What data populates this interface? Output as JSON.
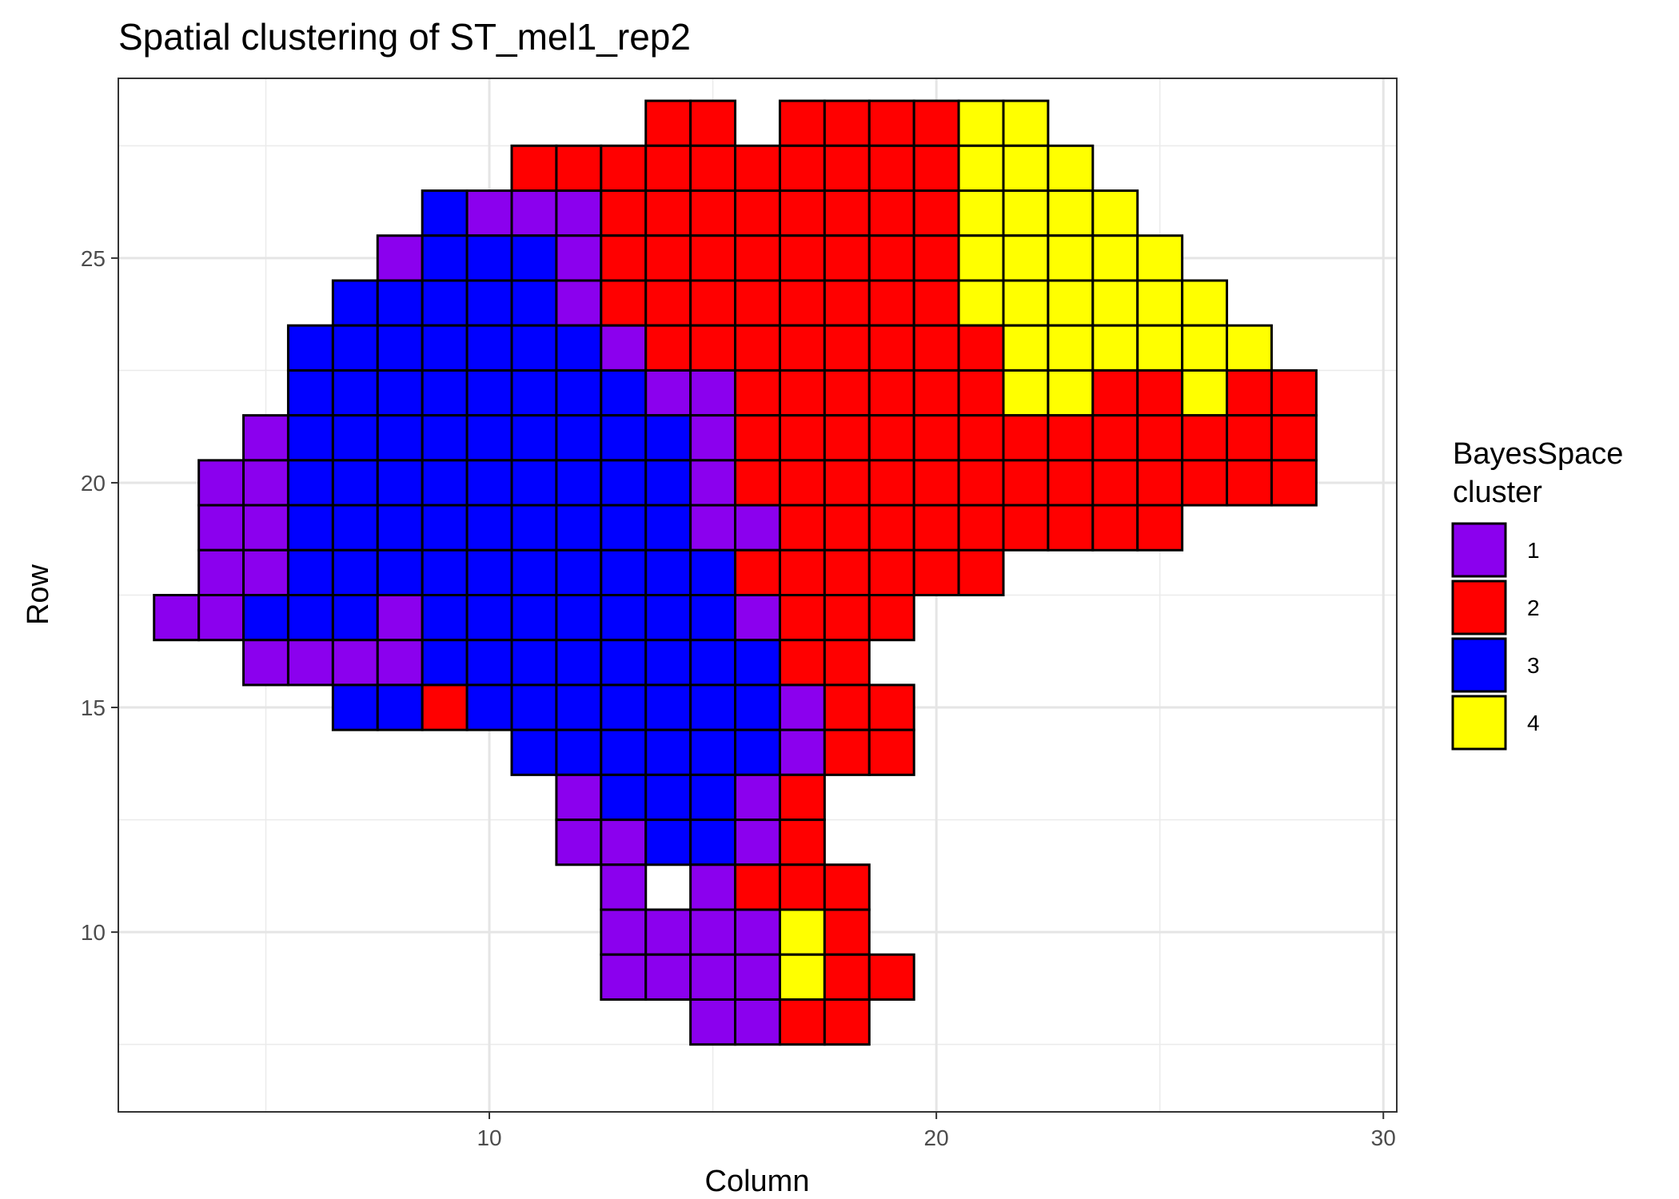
{
  "chart_data": {
    "type": "heatmap",
    "title": "Spatial clustering of ST_mel1_rep2",
    "xlabel": "Column",
    "ylabel": "Row",
    "xlim": [
      1.7,
      30.3
    ],
    "ylim": [
      6,
      29
    ],
    "x_ticks": [
      10,
      20,
      30
    ],
    "y_ticks": [
      10,
      15,
      20,
      25
    ],
    "grid": true,
    "legend": {
      "title_lines": [
        "BayesSpace",
        "cluster"
      ],
      "position": "right",
      "entries": [
        {
          "label": "1",
          "color": "#8b00ee"
        },
        {
          "label": "2",
          "color": "#ff0000"
        },
        {
          "label": "3",
          "color": "#0000ff"
        },
        {
          "label": "4",
          "color": "#ffff00"
        }
      ]
    },
    "cell_size": 1,
    "rows": [
      {
        "y": 28,
        "x_start": 14,
        "clusters": [
          2,
          2,
          0,
          2,
          2,
          2,
          2,
          4,
          4
        ]
      },
      {
        "y": 27,
        "x_start": 11,
        "clusters": [
          2,
          2,
          2,
          2,
          2,
          2,
          2,
          2,
          2,
          2,
          4,
          4,
          4
        ]
      },
      {
        "y": 26,
        "x_start": 9,
        "clusters": [
          3,
          1,
          1,
          1,
          2,
          2,
          2,
          2,
          2,
          2,
          2,
          2,
          4,
          4,
          4,
          4
        ]
      },
      {
        "y": 25,
        "x_start": 8,
        "clusters": [
          1,
          3,
          3,
          3,
          1,
          2,
          2,
          2,
          2,
          2,
          2,
          2,
          2,
          4,
          4,
          4,
          4,
          4
        ]
      },
      {
        "y": 24,
        "x_start": 7,
        "clusters": [
          3,
          3,
          3,
          3,
          3,
          1,
          2,
          2,
          2,
          2,
          2,
          2,
          2,
          2,
          4,
          4,
          4,
          4,
          4,
          4
        ]
      },
      {
        "y": 23,
        "x_start": 6,
        "clusters": [
          3,
          3,
          3,
          3,
          3,
          3,
          3,
          1,
          2,
          2,
          2,
          2,
          2,
          2,
          2,
          2,
          4,
          4,
          4,
          4,
          4,
          4
        ]
      },
      {
        "y": 22,
        "x_start": 6,
        "clusters": [
          3,
          3,
          3,
          3,
          3,
          3,
          3,
          3,
          1,
          1,
          2,
          2,
          2,
          2,
          2,
          2,
          4,
          4,
          2,
          2,
          4,
          2,
          2
        ]
      },
      {
        "y": 21,
        "x_start": 5,
        "clusters": [
          1,
          3,
          3,
          3,
          3,
          3,
          3,
          3,
          3,
          3,
          1,
          2,
          2,
          2,
          2,
          2,
          2,
          2,
          2,
          2,
          2,
          2,
          2,
          2
        ]
      },
      {
        "y": 20,
        "x_start": 4,
        "clusters": [
          1,
          1,
          3,
          3,
          3,
          3,
          3,
          3,
          3,
          3,
          3,
          1,
          2,
          2,
          2,
          2,
          2,
          2,
          2,
          2,
          2,
          2,
          2,
          2,
          2
        ]
      },
      {
        "y": 19,
        "x_start": 4,
        "clusters": [
          1,
          1,
          3,
          3,
          3,
          3,
          3,
          3,
          3,
          3,
          3,
          1,
          1,
          2,
          2,
          2,
          2,
          2,
          2,
          2,
          2,
          2
        ]
      },
      {
        "y": 18,
        "x_start": 4,
        "clusters": [
          1,
          1,
          3,
          3,
          3,
          3,
          3,
          3,
          3,
          3,
          3,
          3,
          2,
          2,
          2,
          2,
          2,
          2
        ]
      },
      {
        "y": 17,
        "x_start": 3,
        "clusters": [
          1,
          1,
          3,
          3,
          3,
          1,
          3,
          3,
          3,
          3,
          3,
          3,
          3,
          1,
          2,
          2,
          2
        ]
      },
      {
        "y": 16,
        "x_start": 5,
        "clusters": [
          1,
          1,
          1,
          1,
          3,
          3,
          3,
          3,
          3,
          3,
          3,
          3,
          2,
          2
        ]
      },
      {
        "y": 15,
        "x_start": 7,
        "clusters": [
          3,
          3,
          2,
          3,
          3,
          3,
          3,
          3,
          3,
          3,
          1,
          2,
          2
        ]
      },
      {
        "y": 14,
        "x_start": 11,
        "clusters": [
          3,
          3,
          3,
          3,
          3,
          3,
          1,
          2,
          2
        ]
      },
      {
        "y": 13,
        "x_start": 12,
        "clusters": [
          1,
          3,
          3,
          3,
          1,
          2
        ]
      },
      {
        "y": 12,
        "x_start": 12,
        "clusters": [
          1,
          1,
          3,
          3,
          1,
          2
        ]
      },
      {
        "y": 11,
        "x_start": 13,
        "clusters": [
          1,
          0,
          1,
          2,
          2,
          2
        ]
      },
      {
        "y": 10,
        "x_start": 13,
        "clusters": [
          1,
          1,
          1,
          1,
          4,
          2
        ]
      },
      {
        "y": 9,
        "x_start": 13,
        "clusters": [
          1,
          1,
          1,
          1,
          4,
          2,
          2
        ]
      },
      {
        "y": 8,
        "x_start": 15,
        "clusters": [
          1,
          1,
          2,
          2
        ]
      }
    ]
  }
}
